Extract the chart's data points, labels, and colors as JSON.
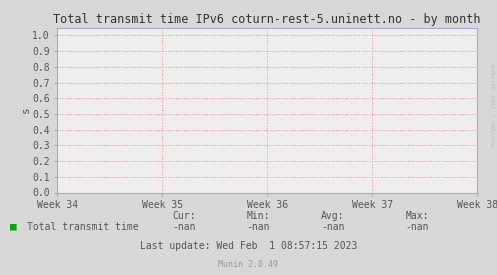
{
  "title": "Total transmit time IPv6 coturn-rest-5.uninett.no - by month",
  "ylabel": "s",
  "yticks": [
    0.0,
    0.1,
    0.2,
    0.3,
    0.4,
    0.5,
    0.6,
    0.7,
    0.8,
    0.9,
    1.0
  ],
  "ylim": [
    0.0,
    1.05
  ],
  "xtick_labels": [
    "Week 34",
    "Week 35",
    "Week 36",
    "Week 37",
    "Week 38"
  ],
  "bg_color": "#d8d8d8",
  "plot_bg_color": "#eeeeee",
  "grid_color": "#ff8888",
  "axis_color": "#aaaacc",
  "title_color": "#333333",
  "tick_color": "#555555",
  "legend_label": "Total transmit time",
  "legend_color": "#00aa00",
  "cur_val": "-nan",
  "min_val": "-nan",
  "avg_val": "-nan",
  "max_val": "-nan",
  "last_update": "Last update: Wed Feb  1 08:57:15 2023",
  "munin_version": "Munin 2.0.49",
  "watermark": "RRDTOOL / TOBI OETIKER",
  "stats_headers": [
    "Cur:",
    "Min:",
    "Avg:",
    "Max:"
  ]
}
